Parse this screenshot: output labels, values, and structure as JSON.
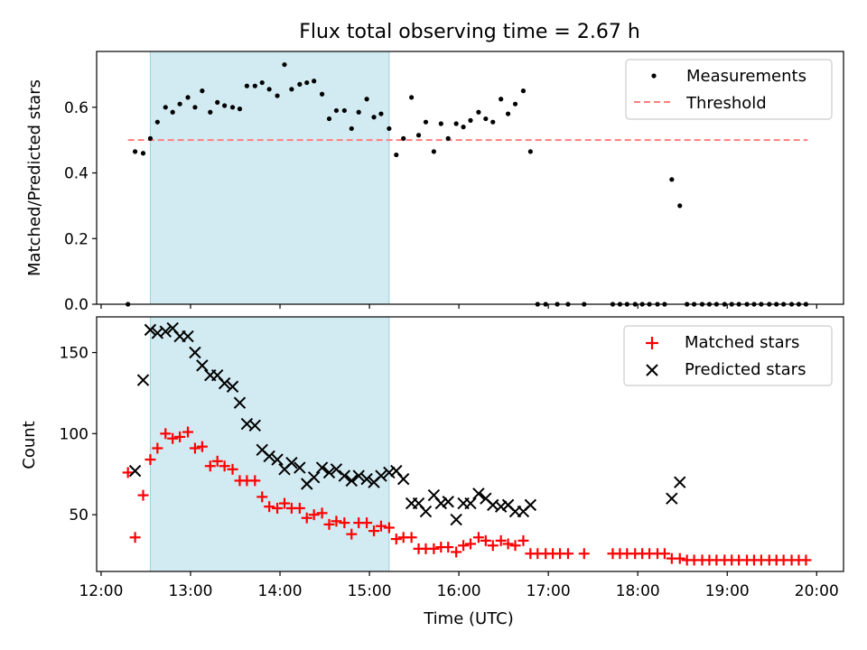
{
  "title": "Flux total observing time = 2.67 h",
  "colors": {
    "measurement": "#000000",
    "threshold": "#ff7f7f",
    "matched": "#ff0000",
    "predicted": "#000000",
    "shade": "#add8e6"
  },
  "chart_data": [
    {
      "type": "scatter",
      "ylabel": "Matched/Predicted stars",
      "xlim": [
        11.95,
        20.3
      ],
      "ylim": [
        0,
        0.77
      ],
      "yticks": [
        0.0,
        0.2,
        0.4,
        0.6
      ],
      "ytick_labels": [
        "0.0",
        "0.2",
        "0.4",
        "0.6"
      ],
      "shaded_x": [
        12.55,
        15.22
      ],
      "threshold": {
        "value": 0.5,
        "x_range": [
          12.3,
          19.9
        ]
      },
      "legend": {
        "position": "upper right",
        "entries": [
          "Measurements",
          "Threshold"
        ]
      },
      "series": [
        {
          "name": "Measurements",
          "marker": "dot",
          "x": [
            12.3,
            12.38,
            12.47,
            12.55,
            12.63,
            12.72,
            12.8,
            12.88,
            12.97,
            13.05,
            13.13,
            13.22,
            13.3,
            13.38,
            13.47,
            13.55,
            13.63,
            13.72,
            13.8,
            13.88,
            13.97,
            14.05,
            14.13,
            14.22,
            14.3,
            14.38,
            14.47,
            14.55,
            14.63,
            14.72,
            14.8,
            14.88,
            14.97,
            15.05,
            15.13,
            15.22,
            15.3,
            15.38,
            15.47,
            15.55,
            15.63,
            15.72,
            15.8,
            15.88,
            15.97,
            16.05,
            16.13,
            16.22,
            16.3,
            16.38,
            16.47,
            16.55,
            16.63,
            16.72,
            16.8,
            16.88,
            16.97,
            17.1,
            17.22,
            17.4,
            17.72,
            17.8,
            17.88,
            17.97,
            18.05,
            18.13,
            18.22,
            18.3,
            18.38,
            18.47,
            18.55,
            18.63,
            18.72,
            18.8,
            18.88,
            18.97,
            19.05,
            19.13,
            19.22,
            19.3,
            19.38,
            19.47,
            19.55,
            19.63,
            19.72,
            19.8,
            19.88
          ],
          "y": [
            0.0,
            0.465,
            0.46,
            0.505,
            0.555,
            0.6,
            0.585,
            0.61,
            0.63,
            0.6,
            0.65,
            0.585,
            0.615,
            0.605,
            0.6,
            0.595,
            0.665,
            0.665,
            0.675,
            0.655,
            0.635,
            0.73,
            0.655,
            0.67,
            0.675,
            0.68,
            0.64,
            0.565,
            0.59,
            0.59,
            0.535,
            0.585,
            0.625,
            0.57,
            0.58,
            0.535,
            0.455,
            0.505,
            0.63,
            0.515,
            0.555,
            0.465,
            0.55,
            0.505,
            0.55,
            0.54,
            0.56,
            0.585,
            0.565,
            0.555,
            0.625,
            0.58,
            0.61,
            0.65,
            0.465,
            0.0,
            0.0,
            0.0,
            0.0,
            0.0,
            0.0,
            0.0,
            0.0,
            0.0,
            0.0,
            0.0,
            0.0,
            0.0,
            0.38,
            0.3,
            0.0,
            0.0,
            0.0,
            0.0,
            0.0,
            0.0,
            0.0,
            0.0,
            0.0,
            0.0,
            0.0,
            0.0,
            0.0,
            0.0,
            0.0,
            0.0,
            0.0
          ]
        }
      ]
    },
    {
      "type": "scatter",
      "ylabel": "Count",
      "xlabel": "Time (UTC)",
      "xlim": [
        11.95,
        20.3
      ],
      "ylim": [
        15,
        172
      ],
      "yticks": [
        50,
        100,
        150
      ],
      "ytick_labels": [
        "50",
        "100",
        "150"
      ],
      "xticks": [
        12,
        13,
        14,
        15,
        16,
        17,
        18,
        19,
        20
      ],
      "xtick_labels": [
        "12:00",
        "13:00",
        "14:00",
        "15:00",
        "16:00",
        "17:00",
        "18:00",
        "19:00",
        "20:00"
      ],
      "shaded_x": [
        12.55,
        15.22
      ],
      "legend": {
        "position": "upper right",
        "entries": [
          "Matched stars",
          "Predicted stars"
        ]
      },
      "series": [
        {
          "name": "Matched stars",
          "marker": "plus",
          "x": [
            12.3,
            12.38,
            12.47,
            12.55,
            12.63,
            12.72,
            12.8,
            12.88,
            12.97,
            13.05,
            13.13,
            13.22,
            13.3,
            13.38,
            13.47,
            13.55,
            13.63,
            13.72,
            13.8,
            13.88,
            13.97,
            14.05,
            14.13,
            14.22,
            14.3,
            14.38,
            14.47,
            14.55,
            14.63,
            14.72,
            14.8,
            14.88,
            14.97,
            15.05,
            15.13,
            15.22,
            15.3,
            15.38,
            15.47,
            15.55,
            15.63,
            15.72,
            15.8,
            15.88,
            15.97,
            16.05,
            16.13,
            16.22,
            16.3,
            16.38,
            16.47,
            16.55,
            16.63,
            16.72,
            16.8,
            16.88,
            16.97,
            17.05,
            17.13,
            17.22,
            17.4,
            17.72,
            17.8,
            17.88,
            17.97,
            18.05,
            18.13,
            18.22,
            18.3,
            18.38,
            18.47,
            18.55,
            18.63,
            18.72,
            18.8,
            18.88,
            18.97,
            19.05,
            19.13,
            19.22,
            19.3,
            19.38,
            19.47,
            19.55,
            19.63,
            19.72,
            19.8,
            19.88
          ],
          "y": [
            76,
            36,
            62,
            84,
            91,
            100,
            97,
            98,
            101,
            91,
            92,
            80,
            83,
            80,
            78,
            71,
            71,
            71,
            61,
            55,
            54,
            57,
            54,
            54,
            48,
            50,
            51,
            44,
            46,
            45,
            38,
            45,
            45,
            40,
            43,
            42,
            35,
            36,
            36,
            29,
            29,
            29,
            30,
            30,
            27,
            31,
            32,
            36,
            34,
            31,
            34,
            32,
            31,
            34,
            26,
            26,
            26,
            26,
            26,
            26,
            26,
            26,
            26,
            26,
            26,
            26,
            26,
            26,
            26,
            23,
            23,
            22,
            22,
            22,
            22,
            22,
            22,
            22,
            22,
            22,
            22,
            22,
            22,
            22,
            22,
            22,
            22,
            22
          ]
        },
        {
          "name": "Predicted stars",
          "marker": "x",
          "x": [
            12.38,
            12.47,
            12.55,
            12.63,
            12.72,
            12.8,
            12.88,
            12.97,
            13.05,
            13.13,
            13.22,
            13.3,
            13.38,
            13.47,
            13.55,
            13.63,
            13.72,
            13.8,
            13.88,
            13.97,
            14.05,
            14.13,
            14.22,
            14.3,
            14.38,
            14.47,
            14.55,
            14.63,
            14.72,
            14.8,
            14.88,
            14.97,
            15.05,
            15.13,
            15.22,
            15.3,
            15.38,
            15.47,
            15.55,
            15.63,
            15.72,
            15.8,
            15.88,
            15.97,
            16.05,
            16.13,
            16.22,
            16.3,
            16.38,
            16.47,
            16.55,
            16.63,
            16.72,
            16.8,
            18.38,
            18.47
          ],
          "y": [
            77,
            133,
            164,
            162,
            163,
            165,
            160,
            160,
            150,
            142,
            136,
            136,
            131,
            129,
            119,
            106,
            105,
            90,
            86,
            84,
            78,
            82,
            79,
            69,
            73,
            79,
            76,
            78,
            74,
            71,
            74,
            72,
            70,
            74,
            76,
            77,
            72,
            57,
            57,
            52,
            62,
            57,
            58,
            47,
            57,
            57,
            63,
            60,
            56,
            55,
            56,
            52,
            52,
            56,
            60,
            70
          ]
        }
      ]
    }
  ]
}
